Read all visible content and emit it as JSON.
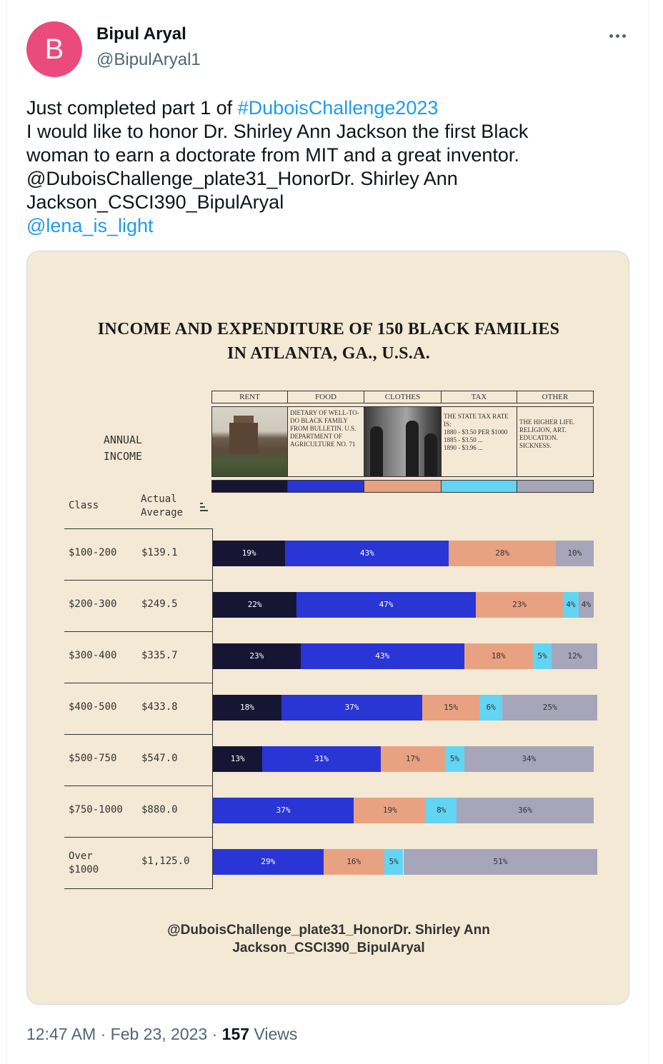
{
  "tweet": {
    "author_name": "Bipul Aryal",
    "handle": "@BipulAryal1",
    "avatar_letter": "B",
    "avatar_color": "#ea4b7c",
    "text_prefix": "Just completed part 1 of ",
    "hashtag": "#DuboisChallenge2023",
    "line2": "I would like to honor Dr. Shirley Ann Jackson the first Black",
    "line3": "woman to earn a doctorate from MIT and a great inventor.",
    "line4": "@DuboisChallenge_plate31_HonorDr. Shirley Ann",
    "line5": "Jackson_CSCI390_BipulAryal",
    "mention": "@lena_is_light",
    "time": "12:47 AM",
    "date": "Feb 23, 2023",
    "views_count": "157",
    "views_label": "Views",
    "more_icon": "more-horizontal-icon"
  },
  "plate": {
    "title_line1": "INCOME AND EXPENDITURE OF 150 BLACK FAMILIES",
    "title_line2": "IN ATLANTA, GA., U.S.A.",
    "annual_line1": "ANNUAL",
    "annual_line2": "INCOME",
    "col_class": "Class",
    "col_avg_line1": "Actual",
    "col_avg_line2": "Average",
    "categories": [
      {
        "name": "RENT",
        "color": "#161634",
        "box": ""
      },
      {
        "name": "FOOD",
        "color": "#2a35d6",
        "box": "DIETARY OF WELL-TO-DO BLACK FAMILY FROM BULLETIN. U.S. DEPARTMENT OF AGRICULTURE NO. 71"
      },
      {
        "name": "CLOTHES",
        "color": "#e8a282",
        "box": ""
      },
      {
        "name": "TAX",
        "color": "#63d5f4",
        "box_lines": [
          "THE STATE TAX RATE IS:",
          "1880 - $3.50 PER $1000",
          "1885 - $3.50 ...",
          "1890 - $3.96 ..."
        ]
      },
      {
        "name": "OTHER",
        "color": "#a6a5ba",
        "box": "THE HIGHER LIFE. RELIGION, ART. EDUCATION. SICKNESS."
      }
    ],
    "caption_line1": "@DuboisChallenge_plate31_HonorDr. Shirley Ann",
    "caption_line2": "Jackson_CSCI390_BipulAryal"
  },
  "chart_data": {
    "type": "bar",
    "orientation": "horizontal-stacked",
    "categories": [
      "$100-200",
      "$200-300",
      "$300-400",
      "$400-500",
      "$500-750",
      "$750-1000",
      "Over $1000"
    ],
    "actual_average": [
      "$139.1",
      "$249.5",
      "$335.7",
      "$433.8",
      "$547.0",
      "$880.0",
      "$1,125.0"
    ],
    "series": [
      {
        "name": "RENT",
        "values": [
          19,
          22,
          23,
          18,
          13,
          0,
          0
        ]
      },
      {
        "name": "FOOD",
        "values": [
          43,
          47,
          43,
          37,
          31,
          37,
          29
        ]
      },
      {
        "name": "CLOTHES",
        "values": [
          28,
          23,
          18,
          15,
          17,
          19,
          16
        ]
      },
      {
        "name": "TAX",
        "values": [
          0,
          4,
          5,
          6,
          5,
          8,
          5
        ]
      },
      {
        "name": "OTHER",
        "values": [
          10,
          4,
          12,
          25,
          34,
          36,
          51
        ]
      }
    ],
    "value_suffix": "%",
    "label_colors": [
      "#ffffff",
      "#ffffff",
      "#333333",
      "#333333",
      "#333333"
    ]
  }
}
